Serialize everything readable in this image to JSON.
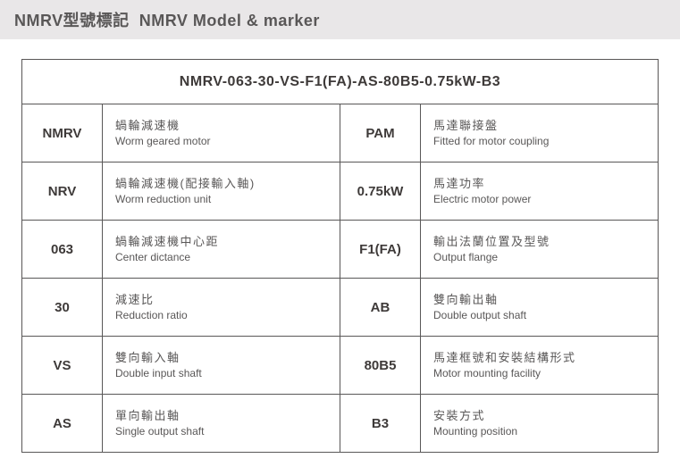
{
  "header": {
    "title_cjk": "NMRV型號標記",
    "title_en": "NMRV Model & marker"
  },
  "model_code": "NMRV-063-30-VS-F1(FA)-AS-80B5-0.75kW-B3",
  "rows": [
    {
      "code1": "NMRV",
      "cjk1": "蝸輪減速機",
      "en1": "Worm geared motor",
      "code2": "PAM",
      "cjk2": "馬達聯接盤",
      "en2": "Fitted for motor coupling"
    },
    {
      "code1": "NRV",
      "cjk1": "蝸輪減速機(配接輸入軸)",
      "en1": "Worm reduction unit",
      "code2": "0.75kW",
      "cjk2": "馬達功率",
      "en2": "Electric motor power"
    },
    {
      "code1": "063",
      "cjk1": "蝸輪減速機中心距",
      "en1": "Center dictance",
      "code2": "F1(FA)",
      "cjk2": "輸出法蘭位置及型號",
      "en2": "Output flange"
    },
    {
      "code1": "30",
      "cjk1": "減速比",
      "en1": "Reduction ratio",
      "code2": "AB",
      "cjk2": "雙向輸出軸",
      "en2": "Double output shaft"
    },
    {
      "code1": "VS",
      "cjk1": "雙向輸入軸",
      "en1": "Double input shaft",
      "code2": "80B5",
      "cjk2": "馬達框號和安裝結構形式",
      "en2": "Motor mounting facility"
    },
    {
      "code1": "AS",
      "cjk1": "單向輸出軸",
      "en1": "Single output shaft",
      "code2": "B3",
      "cjk2": "安裝方式",
      "en2": "Mounting position"
    }
  ],
  "colors": {
    "header_bg": "#e9e7e8",
    "text_primary": "#595757",
    "border": "#595757",
    "code_text": "#3e3a39"
  }
}
